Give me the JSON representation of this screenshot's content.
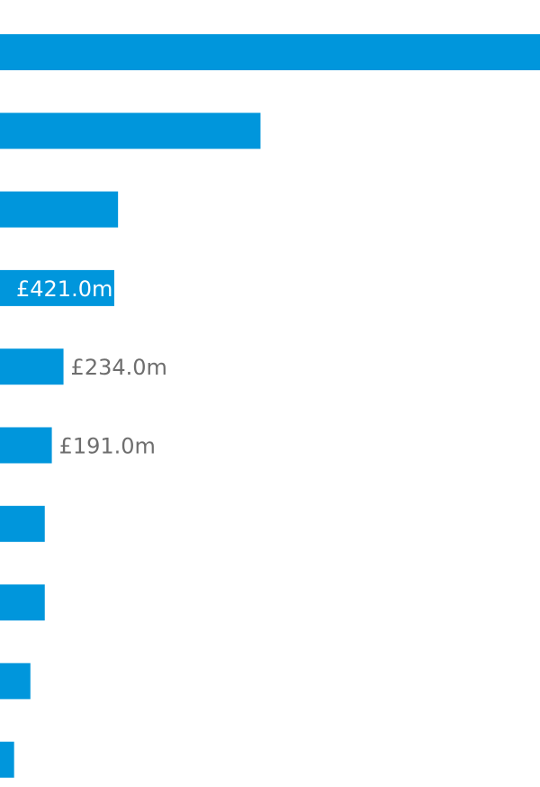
{
  "chart_data": {
    "type": "bar",
    "orientation": "horizontal",
    "bar_color": "#0096DC",
    "label_color_outside": "#6E6E6E",
    "label_color_inside": "#FFFFFF",
    "values": [
      1990,
      960,
      435,
      421,
      234,
      191,
      165,
      165,
      112,
      52
    ],
    "data_labels": [
      "",
      "",
      "",
      "£421.0m",
      "£234.0m",
      "£191.0m",
      "",
      "",
      "",
      ""
    ],
    "label_position": [
      "",
      "",
      "",
      "inside",
      "outside",
      "outside",
      "",
      "",
      "",
      ""
    ],
    "xlim": [
      0,
      1990
    ],
    "grid": false,
    "legend": "none"
  }
}
